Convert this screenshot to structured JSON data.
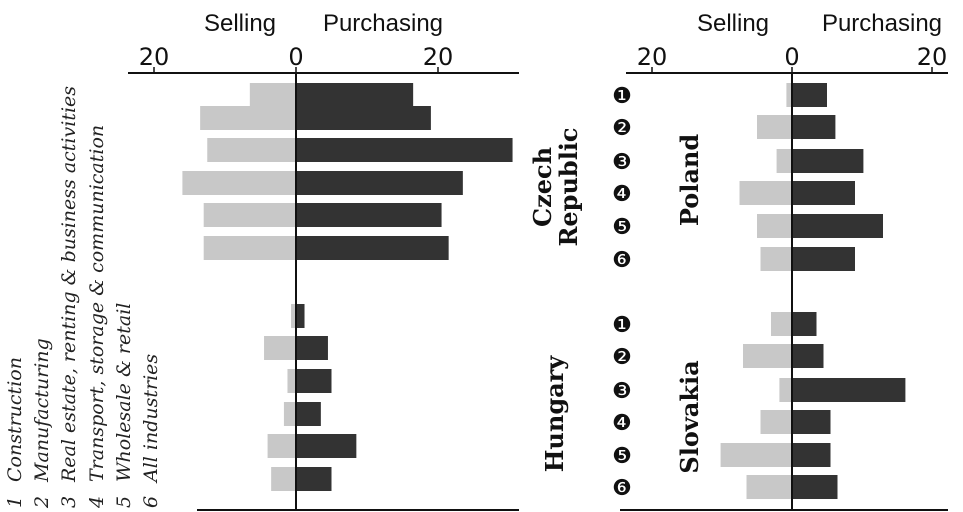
{
  "legend": {
    "items": [
      {
        "number": "1",
        "label": "Construction"
      },
      {
        "number": "2",
        "label": "Manufacturing"
      },
      {
        "number": "3",
        "label": "Real estate, renting & business activities"
      },
      {
        "number": "4",
        "label": "Transport, storage & communication"
      },
      {
        "number": "5",
        "label": "Wholesale & retail"
      },
      {
        "number": "6",
        "label": "All industries"
      }
    ]
  },
  "colors": {
    "selling": "#c8c8c8",
    "purchasing": "#333333",
    "axis": "#111111",
    "text": "#111111"
  },
  "chart_data": [
    {
      "type": "bar",
      "orientation": "horizontal-diverging",
      "header": {
        "left": "Selling",
        "right": "Purchasing"
      },
      "xticks": [
        "20",
        "0",
        "20"
      ],
      "xlim": [
        -20,
        31
      ],
      "series": [
        {
          "name": "Selling"
        },
        {
          "name": "Purchasing"
        }
      ],
      "groups": [
        {
          "country": "Czech Republic",
          "country_lines": [
            "Czech",
            "Republic"
          ],
          "categories": [
            "1",
            "2",
            "3",
            "4",
            "5",
            "6"
          ],
          "selling": [
            6.5,
            13.5,
            12.5,
            16,
            13,
            13
          ],
          "purchasing": [
            16.5,
            19,
            30.5,
            23.5,
            20.5,
            21.5
          ]
        },
        {
          "country": "Hungary",
          "country_lines": [
            "Hungary"
          ],
          "categories": [
            "1",
            "2",
            "3",
            "4",
            "5",
            "6"
          ],
          "selling": [
            0.7,
            4.5,
            1.2,
            1.7,
            4,
            3.5
          ],
          "purchasing": [
            1.2,
            4.5,
            5,
            3.5,
            8.5,
            5
          ]
        }
      ]
    },
    {
      "type": "bar",
      "orientation": "horizontal-diverging",
      "header": {
        "left": "Selling",
        "right": "Purchasing"
      },
      "xticks": [
        "20",
        "0",
        "20"
      ],
      "xlim": [
        -20,
        22
      ],
      "series": [
        {
          "name": "Selling"
        },
        {
          "name": "Purchasing"
        }
      ],
      "groups": [
        {
          "country": "Poland",
          "country_lines": [
            "Poland"
          ],
          "categories": [
            "❶",
            "❷",
            "❸",
            "❹",
            "❺",
            "❻"
          ],
          "selling": [
            0.8,
            5,
            2.2,
            7.5,
            5,
            4.5
          ],
          "purchasing": [
            5,
            6.2,
            10.2,
            9,
            13,
            9
          ]
        },
        {
          "country": "Slovakia",
          "country_lines": [
            "Slovakia"
          ],
          "categories": [
            "❶",
            "❷",
            "❸",
            "❹",
            "❺",
            "❻"
          ],
          "selling": [
            3,
            7,
            1.8,
            4.5,
            10.2,
            6.5
          ],
          "purchasing": [
            3.5,
            4.5,
            16.2,
            5.5,
            5.5,
            6.5
          ]
        }
      ]
    }
  ]
}
